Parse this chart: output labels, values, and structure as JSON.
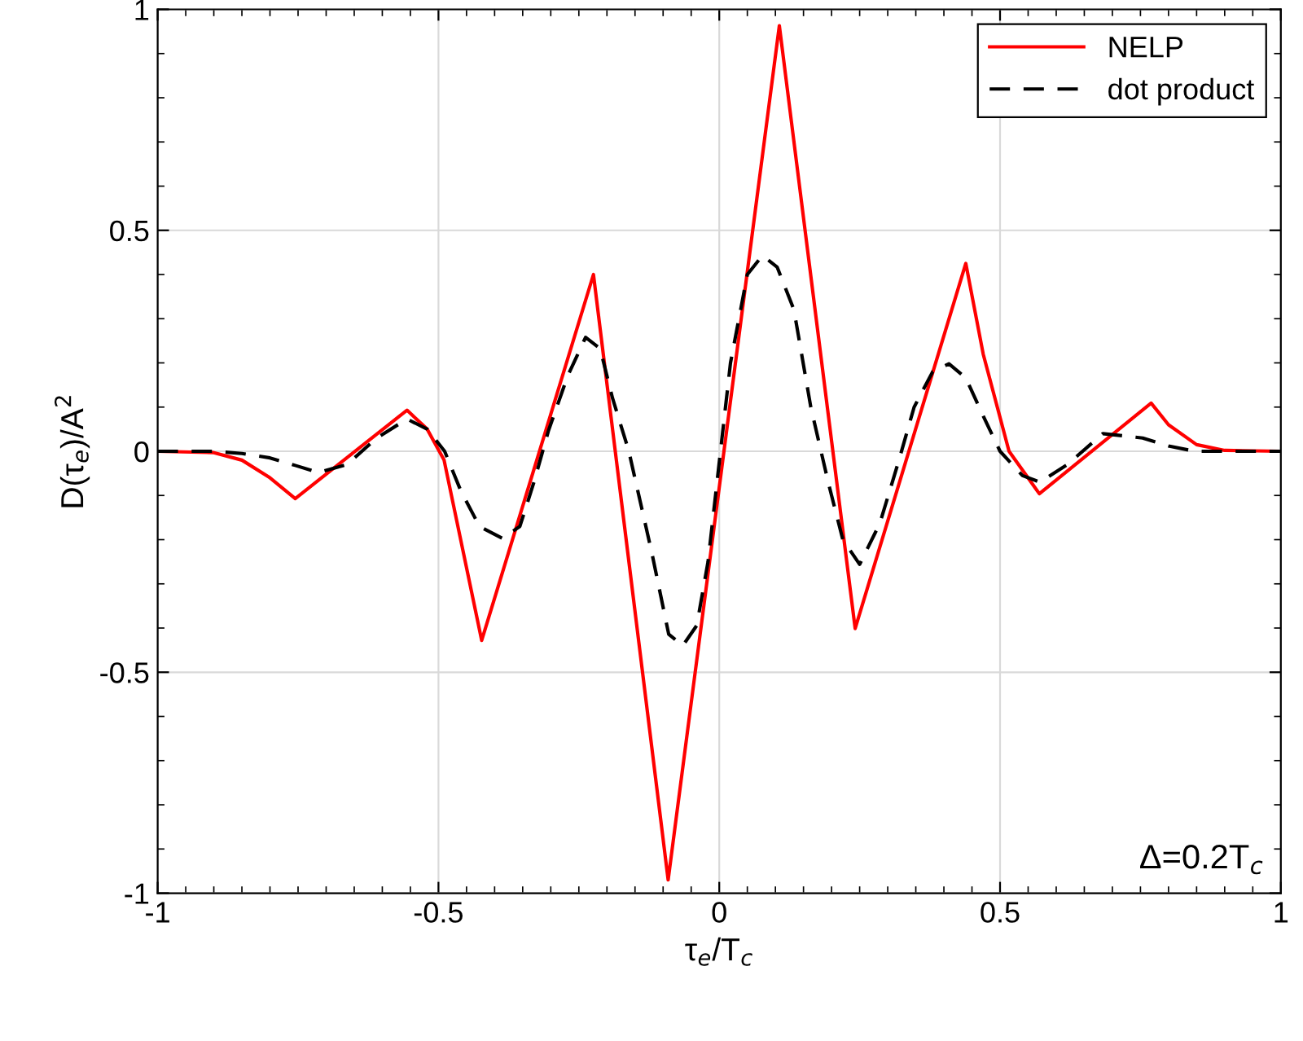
{
  "chart_data": {
    "type": "line",
    "xlabel": "τ$_{e}$/T$_{c}$",
    "ylabel": "D(τ$_{e}$)/A$^{2}$",
    "xlim": [
      -1,
      1
    ],
    "ylim": [
      -1,
      1
    ],
    "xticks": [
      -1,
      -0.5,
      0,
      0.5,
      1
    ],
    "yticks": [
      -1,
      -0.5,
      0,
      0.5,
      1
    ],
    "grid": true,
    "legend": "top right",
    "annotations": [
      "Δ=0.2T$_{c}$"
    ],
    "series": [
      {
        "name": "NELP",
        "color": "#ff0000",
        "line_style": "solid",
        "x": [
          -1,
          -0.9,
          -0.85,
          -0.8,
          -0.755,
          -0.556,
          -0.52,
          -0.49,
          -0.423,
          -0.224,
          -0.091,
          0.107,
          0.242,
          0.439,
          0.47,
          0.516,
          0.57,
          0.769,
          0.8,
          0.85,
          0.9,
          1
        ],
        "values": [
          0,
          -0.003,
          -0.02,
          -0.06,
          -0.107,
          0.093,
          0.05,
          -0.02,
          -0.428,
          0.4,
          -0.97,
          0.963,
          -0.401,
          0.425,
          0.22,
          0,
          -0.096,
          0.109,
          0.06,
          0.015,
          0.002,
          0
        ]
      },
      {
        "name": "dot product",
        "color": "#000000",
        "line_style": "dashed",
        "x": [
          -1,
          -0.9,
          -0.85,
          -0.8,
          -0.755,
          -0.714,
          -0.663,
          -0.61,
          -0.556,
          -0.52,
          -0.489,
          -0.46,
          -0.427,
          -0.386,
          -0.355,
          -0.33,
          -0.304,
          -0.27,
          -0.238,
          -0.212,
          -0.19,
          -0.161,
          -0.12,
          -0.09,
          -0.065,
          -0.04,
          -0.02,
          0.02,
          0.05,
          0.077,
          0.103,
          0.133,
          0.163,
          0.194,
          0.22,
          0.25,
          0.286,
          0.32,
          0.347,
          0.38,
          0.409,
          0.439,
          0.47,
          0.5,
          0.54,
          0.571,
          0.62,
          0.683,
          0.754,
          0.8,
          0.847,
          0.9,
          1
        ],
        "values": [
          0,
          0,
          -0.005,
          -0.015,
          -0.032,
          -0.048,
          -0.03,
          0.03,
          0.073,
          0.05,
          0,
          -0.09,
          -0.17,
          -0.197,
          -0.17,
          -0.07,
          0.047,
          0.17,
          0.258,
          0.232,
          0.12,
          0,
          -0.23,
          -0.414,
          -0.44,
          -0.394,
          -0.25,
          0.2,
          0.4,
          0.443,
          0.417,
          0.32,
          0.1,
          -0.07,
          -0.2,
          -0.256,
          -0.163,
          -0.02,
          0.1,
          0.18,
          0.198,
          0.166,
          0.08,
          0,
          -0.055,
          -0.07,
          -0.03,
          0.04,
          0.03,
          0.012,
          0,
          0,
          0
        ]
      }
    ]
  }
}
